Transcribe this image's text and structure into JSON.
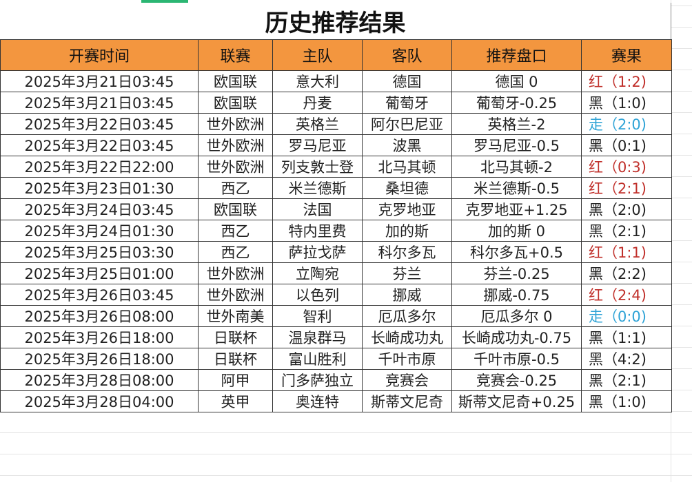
{
  "title": "历史推荐结果",
  "colors": {
    "header_bg": "#f3963f",
    "red": "#c0302b",
    "black": "#222222",
    "blue": "#2fa3d6"
  },
  "headers": [
    "开赛时间",
    "联赛",
    "主队",
    "客队",
    "推荐盘口",
    "赛果"
  ],
  "rows": [
    {
      "time": "2025年3月21日03:45",
      "league": "欧国联",
      "home": "意大利",
      "away": "德国",
      "pick": "德国 0",
      "result": "红（1:2)",
      "result_color": "red"
    },
    {
      "time": "2025年3月21日03:45",
      "league": "欧国联",
      "home": "丹麦",
      "away": "葡萄牙",
      "pick": "葡萄牙-0.25",
      "result": "黑（1:0)",
      "result_color": "black"
    },
    {
      "time": "2025年3月22日03:45",
      "league": "世外欧洲",
      "home": "英格兰",
      "away": "阿尔巴尼亚",
      "pick": "英格兰-2",
      "result": "走（2:0)",
      "result_color": "blue"
    },
    {
      "time": "2025年3月22日03:45",
      "league": "世外欧洲",
      "home": "罗马尼亚",
      "away": "波黑",
      "pick": "罗马尼亚-0.5",
      "result": "黑（0:1)",
      "result_color": "black"
    },
    {
      "time": "2025年3月22日22:00",
      "league": "世外欧洲",
      "home": "列支敦士登",
      "away": "北马其顿",
      "pick": "北马其顿-2",
      "result": "红（0:3)",
      "result_color": "red"
    },
    {
      "time": "2025年3月23日01:30",
      "league": "西乙",
      "home": "米兰德斯",
      "away": "桑坦德",
      "pick": "米兰德斯-0.5",
      "result": "红（2:1)",
      "result_color": "red"
    },
    {
      "time": "2025年3月24日03:45",
      "league": "欧国联",
      "home": "法国",
      "away": "克罗地亚",
      "pick": "克罗地亚+1.25",
      "result": "黑（2:0)",
      "result_color": "black"
    },
    {
      "time": "2025年3月24日01:30",
      "league": "西乙",
      "home": "特内里费",
      "away": "加的斯",
      "pick": "加的斯 0",
      "result": "黑（2:1)",
      "result_color": "black"
    },
    {
      "time": "2025年3月25日03:30",
      "league": "西乙",
      "home": "萨拉戈萨",
      "away": "科尔多瓦",
      "pick": "科尔多瓦+0.5",
      "result": "红（1:1)",
      "result_color": "red"
    },
    {
      "time": "2025年3月25日01:00",
      "league": "世外欧洲",
      "home": "立陶宛",
      "away": "芬兰",
      "pick": "芬兰-0.25",
      "result": "黑（2:2)",
      "result_color": "black"
    },
    {
      "time": "2025年3月26日03:45",
      "league": "世外欧洲",
      "home": "以色列",
      "away": "挪威",
      "pick": "挪威-0.75",
      "result": "红（2:4)",
      "result_color": "red"
    },
    {
      "time": "2025年3月26日08:00",
      "league": "世外南美",
      "home": "智利",
      "away": "厄瓜多尔",
      "pick": "厄瓜多尔 0",
      "result": "走（0:0)",
      "result_color": "blue"
    },
    {
      "time": "2025年3月26日18:00",
      "league": "日联杯",
      "home": "温泉群马",
      "away": "长崎成功丸",
      "pick": "长崎成功丸-0.75",
      "result": "黑（1:1)",
      "result_color": "black"
    },
    {
      "time": "2025年3月26日18:00",
      "league": "日联杯",
      "home": "富山胜利",
      "away": "千叶市原",
      "pick": "千叶市原-0.5",
      "result": "黑（4:2)",
      "result_color": "black"
    },
    {
      "time": "2025年3月28日08:00",
      "league": "阿甲",
      "home": "门多萨独立",
      "away": "竞赛会",
      "pick": "竞赛会-0.25",
      "result": "黑（2:1)",
      "result_color": "black"
    },
    {
      "time": "2025年3月28日04:00",
      "league": "英甲",
      "home": "奥连特",
      "away": "斯蒂文尼奇",
      "pick": "斯蒂文尼奇+0.25",
      "result": "黑（1:0)",
      "result_color": "black"
    }
  ]
}
